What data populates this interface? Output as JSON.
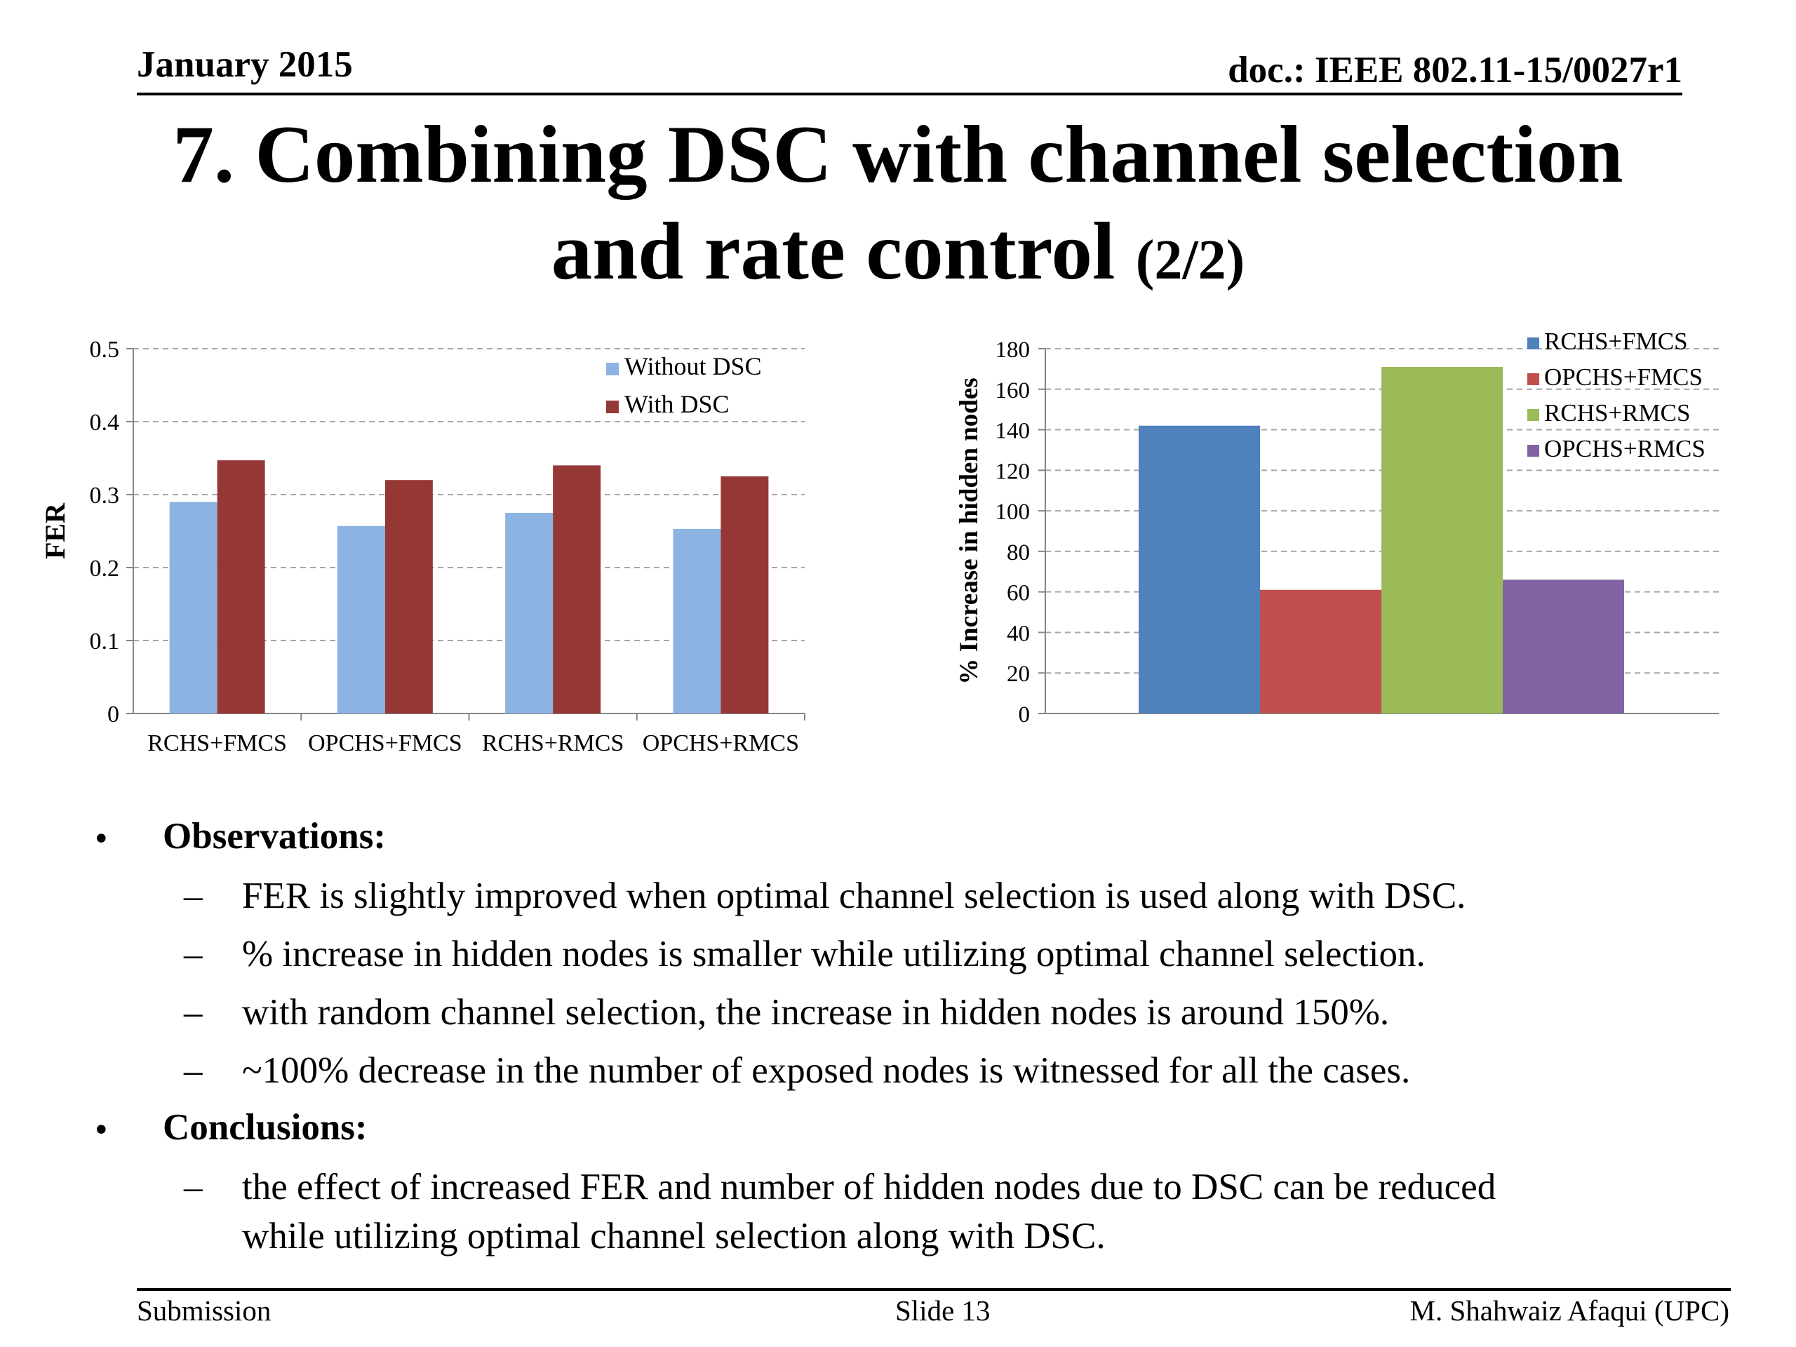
{
  "header": {
    "date": "January 2015",
    "doc": "doc.: IEEE 802.11-15/0027r1"
  },
  "title": {
    "line1": "7. Combining DSC with channel selection",
    "line2_main": "and rate control",
    "line2_suffix": "(2/2)"
  },
  "chart_data": [
    {
      "type": "bar",
      "categories": [
        "RCHS+FMCS",
        "OPCHS+FMCS",
        "RCHS+RMCS",
        "OPCHS+RMCS"
      ],
      "series": [
        {
          "name": "Without DSC",
          "values": [
            0.29,
            0.257,
            0.275,
            0.253
          ],
          "color": "#8db3e2"
        },
        {
          "name": "With DSC",
          "values": [
            0.347,
            0.32,
            0.34,
            0.325
          ],
          "color": "#953735"
        }
      ],
      "ylabel": "FER",
      "ylim": [
        0,
        0.5
      ],
      "yticks": [
        "0",
        "0.1",
        "0.2",
        "0.3",
        "0.4",
        "0.5"
      ],
      "grid": true,
      "legend": "top-right"
    },
    {
      "type": "bar",
      "series": [
        {
          "name": "RCHS+FMCS",
          "values": [
            142
          ],
          "color": "#4f81bd"
        },
        {
          "name": "OPCHS+FMCS",
          "values": [
            61
          ],
          "color": "#c0504d"
        },
        {
          "name": "RCHS+RMCS",
          "values": [
            171
          ],
          "color": "#9bbb59"
        },
        {
          "name": "OPCHS+RMCS",
          "values": [
            66
          ],
          "color": "#8064a2"
        }
      ],
      "ylabel": "% Increase in hidden nodes",
      "ylim": [
        0,
        180
      ],
      "yticks": [
        "0",
        "20",
        "40",
        "60",
        "80",
        "100",
        "120",
        "140",
        "160",
        "180"
      ],
      "grid": true,
      "legend": "top-right"
    }
  ],
  "observations": {
    "heading": "Observations:",
    "items": [
      "FER is slightly improved when optimal channel selection is used along with DSC.",
      "% increase in hidden nodes is smaller while utilizing optimal channel selection.",
      "with random channel selection, the increase in hidden nodes is around 150%.",
      "~100% decrease in the number of exposed nodes is witnessed for all the cases."
    ]
  },
  "conclusions": {
    "heading": "Conclusions:",
    "item_line1": "the effect of increased FER and number of hidden nodes due to DSC can be reduced",
    "item_line2": "while utilizing optimal channel selection along with DSC."
  },
  "bullet_symbol": "•",
  "dash_symbol": "–",
  "footer": {
    "left": "Submission",
    "center": "Slide 13",
    "right": "M. Shahwaiz Afaqui (UPC)"
  }
}
